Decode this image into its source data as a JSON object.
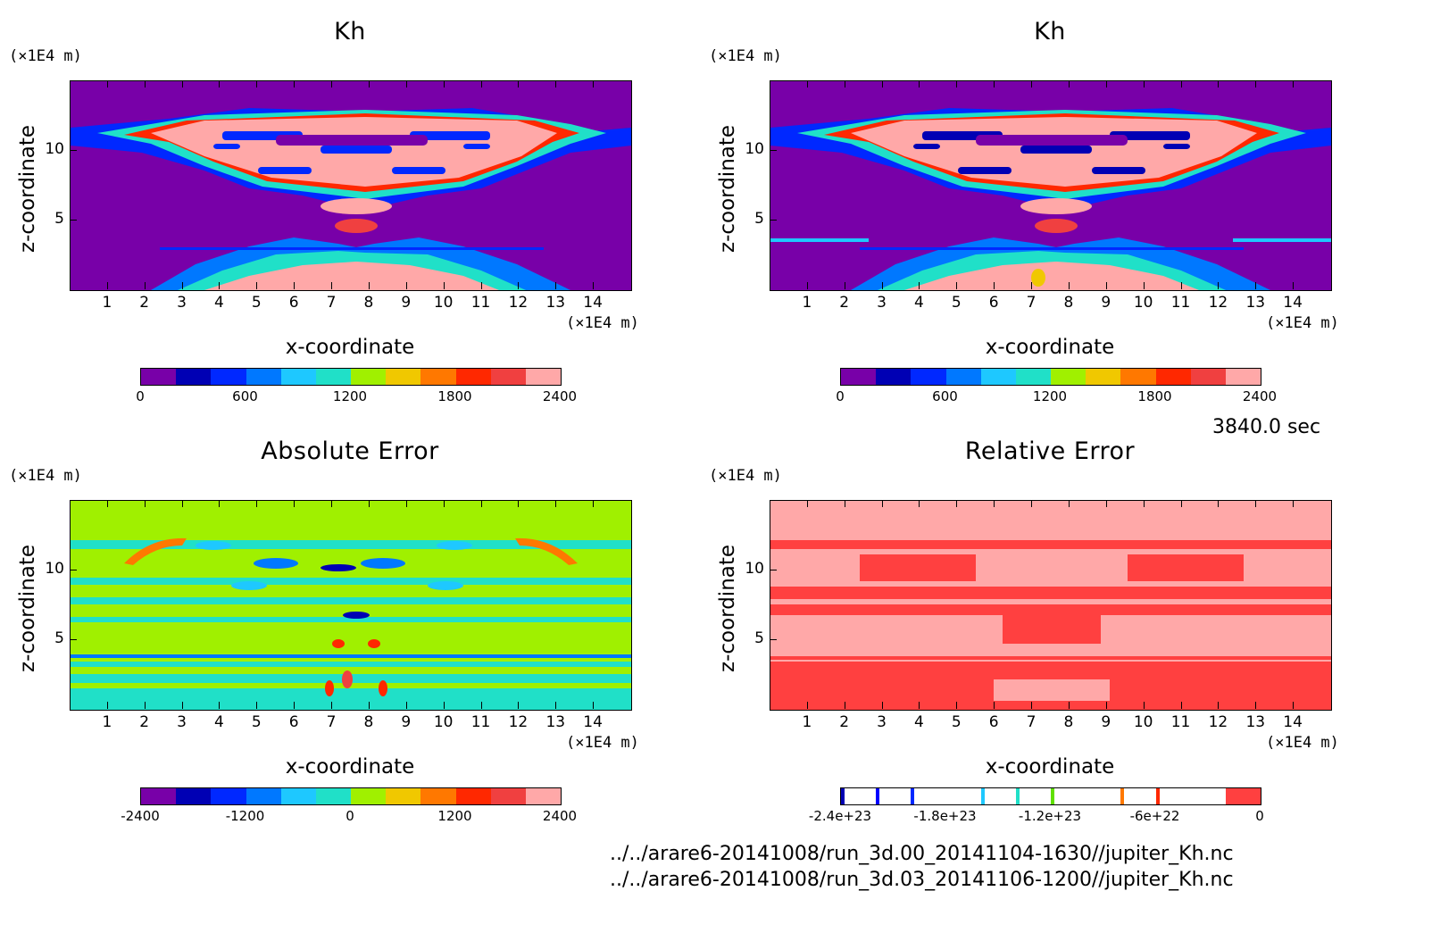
{
  "time_label": "3840.0 sec",
  "files": [
    "../../arare6-20141008/run_3d.00_20141104-1630//jupiter_Kh.nc",
    "../../arare6-20141008/run_3d.03_20141106-1200//jupiter_Kh.nc"
  ],
  "chart_data": [
    {
      "type": "heatmap",
      "title": "Kh",
      "xlabel": "x-coordinate",
      "ylabel": "z-coordinate",
      "x_unit": "(×1E4 m)",
      "y_unit": "(×1E4 m)",
      "xlim": [
        0,
        15
      ],
      "ylim": [
        0,
        15
      ],
      "x_ticks": [
        "1",
        "2",
        "3",
        "4",
        "5",
        "6",
        "7",
        "8",
        "9",
        "10",
        "11",
        "12",
        "13",
        "14"
      ],
      "y_ticks": [
        "10",
        "5"
      ],
      "colorbar": {
        "colors": [
          "#7800a8",
          "#0000b4",
          "#0028ff",
          "#0078ff",
          "#1ec8ff",
          "#20e0c8",
          "#a0f000",
          "#f0c800",
          "#ff7800",
          "#ff2800",
          "#f04040",
          "#ffa8a8"
        ],
        "labels": [
          "0",
          "600",
          "1200",
          "1800",
          "2400"
        ]
      }
    },
    {
      "type": "heatmap",
      "title": "Kh",
      "xlabel": "x-coordinate",
      "ylabel": "z-coordinate",
      "x_unit": "(×1E4 m)",
      "y_unit": "(×1E4 m)",
      "xlim": [
        0,
        15
      ],
      "ylim": [
        0,
        15
      ],
      "x_ticks": [
        "1",
        "2",
        "3",
        "4",
        "5",
        "6",
        "7",
        "8",
        "9",
        "10",
        "11",
        "12",
        "13",
        "14"
      ],
      "y_ticks": [
        "10",
        "5"
      ],
      "colorbar": {
        "colors": [
          "#7800a8",
          "#0000b4",
          "#0028ff",
          "#0078ff",
          "#1ec8ff",
          "#20e0c8",
          "#a0f000",
          "#f0c800",
          "#ff7800",
          "#ff2800",
          "#f04040",
          "#ffa8a8"
        ],
        "labels": [
          "0",
          "600",
          "1200",
          "1800",
          "2400"
        ]
      }
    },
    {
      "type": "heatmap",
      "title": "Absolute Error",
      "xlabel": "x-coordinate",
      "ylabel": "z-coordinate",
      "x_unit": "(×1E4 m)",
      "y_unit": "(×1E4 m)",
      "xlim": [
        0,
        15
      ],
      "ylim": [
        0,
        15
      ],
      "x_ticks": [
        "1",
        "2",
        "3",
        "4",
        "5",
        "6",
        "7",
        "8",
        "9",
        "10",
        "11",
        "12",
        "13",
        "14"
      ],
      "y_ticks": [
        "10",
        "5"
      ],
      "colorbar": {
        "colors": [
          "#7800a8",
          "#0000b4",
          "#0028ff",
          "#0078ff",
          "#1ec8ff",
          "#20e0c8",
          "#a0f000",
          "#f0c800",
          "#ff7800",
          "#ff2800",
          "#f04040",
          "#ffa8a8"
        ],
        "labels": [
          "-2400",
          "-1200",
          "0",
          "1200",
          "2400"
        ]
      }
    },
    {
      "type": "heatmap",
      "title": "Relative Error",
      "xlabel": "x-coordinate",
      "ylabel": "z-coordinate",
      "x_unit": "(×1E4 m)",
      "y_unit": "(×1E4 m)",
      "xlim": [
        0,
        15
      ],
      "ylim": [
        0,
        15
      ],
      "x_ticks": [
        "1",
        "2",
        "3",
        "4",
        "5",
        "6",
        "7",
        "8",
        "9",
        "10",
        "11",
        "12",
        "13",
        "14"
      ],
      "y_ticks": [
        "10",
        "5"
      ],
      "colorbar": {
        "colors": [
          "#ffffff",
          "#ffffff",
          "#ffffff",
          "#ffffff",
          "#ffffff",
          "#ffffff",
          "#ffffff",
          "#ffffff",
          "#ffffff",
          "#ffffff",
          "#ffffff",
          "#ff4040"
        ],
        "labels": [
          "-2.4e+23",
          "-1.8e+23",
          "-1.2e+23",
          "-6e+22",
          "0"
        ]
      }
    }
  ]
}
